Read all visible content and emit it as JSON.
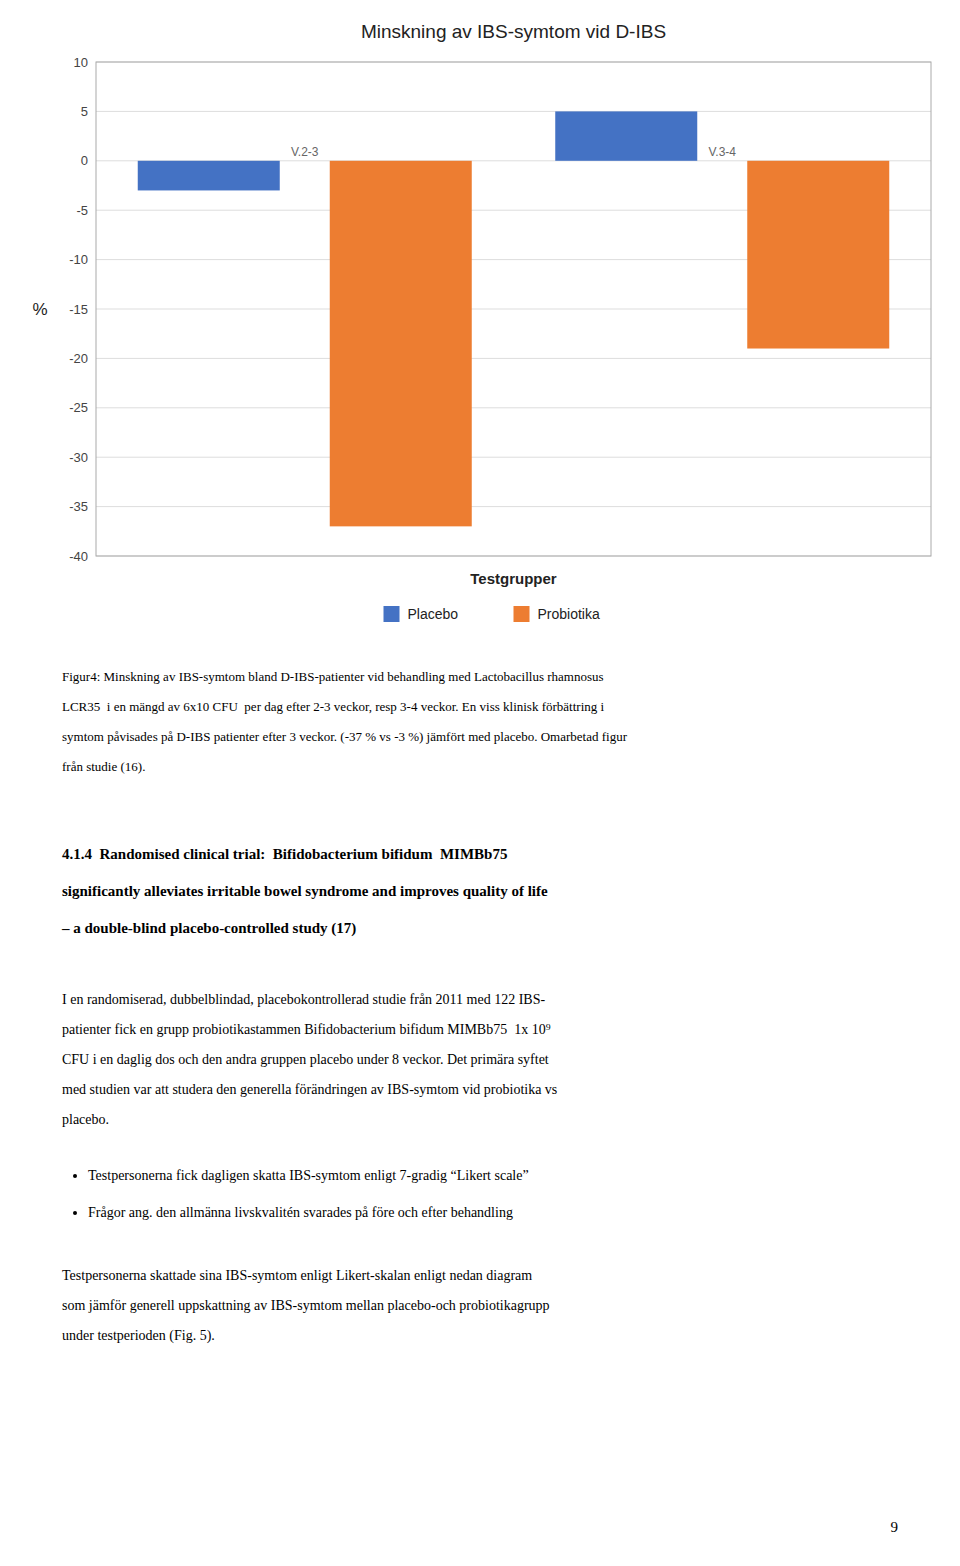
{
  "chart_data": {
    "type": "bar",
    "title": "Minskning av IBS-symtom vid D-IBS",
    "x_label": "Testgrupper",
    "y_label": "%",
    "categories": [
      "V.2-3",
      "V.3-4"
    ],
    "series": [
      {
        "name": "Placebo",
        "color": "#4472C4",
        "values": [
          -3,
          5
        ]
      },
      {
        "name": "Probiotika",
        "color": "#ED7D31",
        "values": [
          -37,
          -19
        ]
      }
    ],
    "ylim": [
      -40,
      10
    ],
    "yticks": [
      10,
      5,
      0,
      -5,
      -10,
      -15,
      -20,
      -25,
      -30,
      -35,
      -40
    ],
    "grid": true,
    "legend": "bottom"
  },
  "caption_lines": [
    "Figur4: Minskning av IBS-symtom bland D-IBS-patienter vid behandling med Lactobacillus rhamnosus",
    "LCR35  i en mängd av 6x10 CFU  per dag efter 2-3 veckor, resp 3-4 veckor. En viss klinisk förbättring i",
    "symtom påvisades på D-IBS patienter efter 3 veckor. (-37 % vs -3 %) jämfört med placebo. Omarbetad figur",
    "från studie (16)."
  ],
  "heading_lines": [
    "4.1.4  Randomised clinical trial:  Bifidobacterium bifidum  MIMBb75",
    "significantly alleviates irritable bowel syndrome and improves quality of life",
    "– a double-blind placebo-controlled study (17)"
  ],
  "body1_lines": [
    "I en randomiserad, dubbelblindad, placebokontrollerad studie från 2011 med 122 IBS-",
    "patienter fick en grupp probiotikastammen Bifidobacterium bifidum MIMBb75  1x 10⁹",
    "CFU i en daglig dos och den andra gruppen placebo under 8 veckor. Det primära syftet",
    "med studien var att studera den generella förändringen av IBS-symtom vid probiotika vs",
    "placebo."
  ],
  "bullets": [
    "Testpersonerna fick dagligen skatta IBS-symtom enligt 7-gradig “Likert scale”",
    "Frågor ang. den allmänna livskvalitén svarades på före och efter behandling"
  ],
  "body2_lines": [
    "Testpersonerna skattade sina IBS-symtom enligt Likert-skalan enligt nedan diagram",
    "som jämför generell uppskattning av IBS-symtom mellan placebo-och probiotikagrupp",
    "under testperioden (Fig. 5)."
  ],
  "page_number": "9"
}
